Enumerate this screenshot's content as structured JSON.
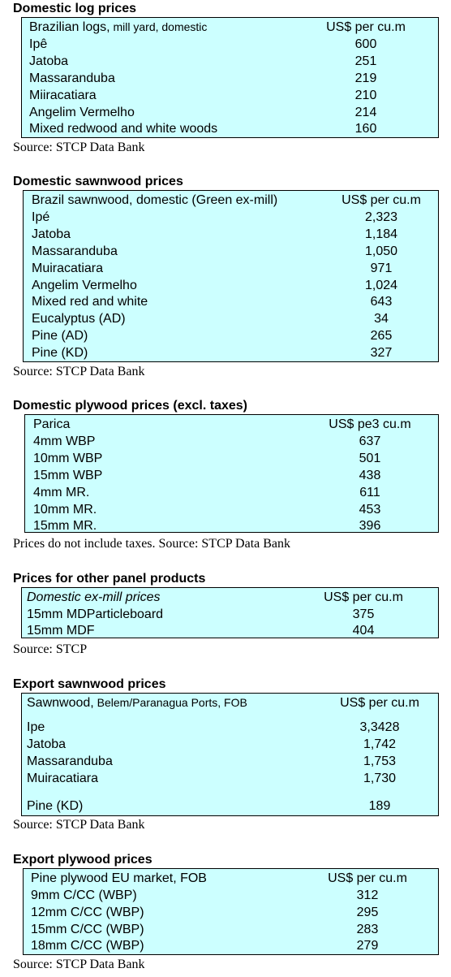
{
  "sections": [
    {
      "title": "Domestic log prices",
      "header_label": "Brazilian logs,",
      "header_note": " mill yard, domestic",
      "header_unit": "US$ per cu.m",
      "rows": [
        {
          "name": "Ipê",
          "value": "600"
        },
        {
          "name": "Jatoba",
          "value": "251"
        },
        {
          "name": "Massaranduba",
          "value": "219"
        },
        {
          "name": "Miiracatiara",
          "value": "210"
        },
        {
          "name": "Angelim Vermelho",
          "value": "214"
        },
        {
          "name": "Mixed redwood and white woods",
          "value": "160"
        }
      ],
      "source": "Source: STCP Data Bank"
    },
    {
      "title": "Domestic sawnwood prices",
      "header_label": "Brazil sawnwood, domestic (Green ex-mill)",
      "header_unit": "US$ per cu.m",
      "rows": [
        {
          "name": "Ipé",
          "value": "2,323"
        },
        {
          "name": "Jatoba",
          "value": "1,184"
        },
        {
          "name": "Massaranduba",
          "value": "1,050"
        },
        {
          "name": "Muiracatiara",
          "value": "971"
        },
        {
          "name": "Angelim Vermelho",
          "value": "1,024"
        },
        {
          "name": "Mixed red and white",
          "value": "643"
        },
        {
          "name": "Eucalyptus (AD)",
          "value": "34"
        },
        {
          "name": "Pine (AD)",
          "value": "265"
        },
        {
          "name": "Pine (KD)",
          "value": "327"
        }
      ],
      "source": "Source: STCP Data Bank"
    },
    {
      "title": "Domestic plywood prices (excl. taxes)",
      "header_label": "Parica",
      "header_unit": "US$ pe3 cu.m",
      "rows": [
        {
          "name": "4mm WBP",
          "value": "637"
        },
        {
          "name": "10mm WBP",
          "value": "501"
        },
        {
          "name": "15mm WBP",
          "value": "438"
        },
        {
          "name": "4mm MR.",
          "value": "611"
        },
        {
          "name": "10mm MR.",
          "value": "453"
        },
        {
          "name": "15mm MR.",
          "value": "396"
        }
      ],
      "source": "Prices do not include taxes. Source: STCP Data Bank"
    },
    {
      "title": "Prices for other panel products",
      "header_label": "Domestic ex-mill prices",
      "header_unit": "US$ per cu.m",
      "rows": [
        {
          "name": "15mm MDParticleboard",
          "value": "375"
        },
        {
          "name": "15mm MDF",
          "value": "404"
        }
      ],
      "source": "Source: STCP"
    },
    {
      "title": "Export sawnwood prices",
      "header_label": "Sawnwood,",
      "header_note": " Belem/Paranagua Ports, FOB",
      "header_unit": "US$ per cu.m",
      "rows": [
        {
          "name": "Ipe",
          "value": "3,3428"
        },
        {
          "name": "Jatoba",
          "value": "1,742"
        },
        {
          "name": "Massaranduba",
          "value": "1,753"
        },
        {
          "name": "Muiracatiara",
          "value": "1,730"
        },
        {
          "name": "Pine (KD)",
          "value": "189"
        }
      ],
      "source": "Source: STCP Data Bank"
    },
    {
      "title": "Export plywood prices",
      "header_label": "Pine plywood EU market, FOB",
      "header_unit": "US$ per cu.m",
      "rows": [
        {
          "name": "9mm C/CC (WBP)",
          "value": "312"
        },
        {
          "name": "12mm C/CC (WBP)",
          "value": "295"
        },
        {
          "name": "15mm C/CC (WBP)",
          "value": "283"
        },
        {
          "name": "18mm C/CC (WBP)",
          "value": "279"
        }
      ],
      "source": "Source: STCP Data Bank"
    }
  ]
}
